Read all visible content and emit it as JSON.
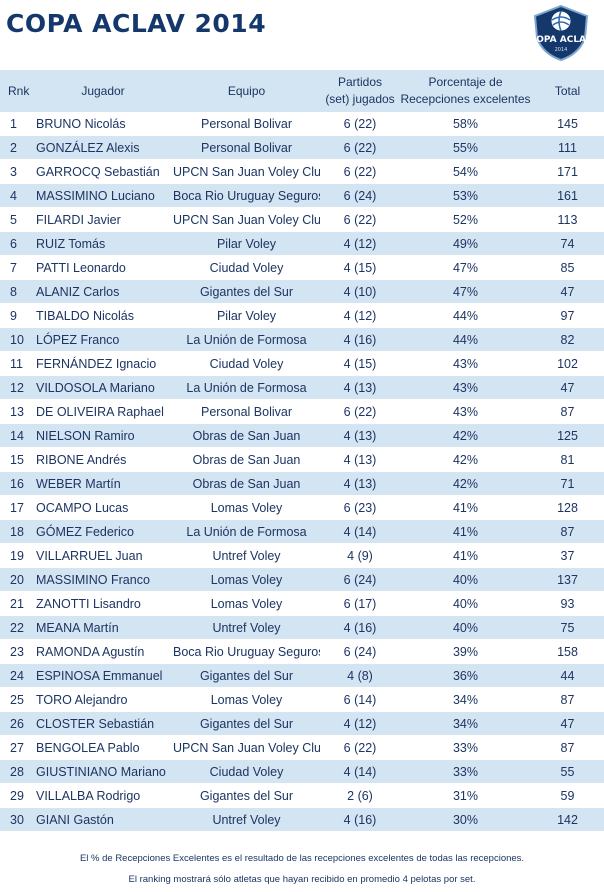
{
  "title": "COPA ACLAV 2014",
  "logo": {
    "text": "COPA ACLAV",
    "year": "2014",
    "icon": "volleyball-shield-icon"
  },
  "headers": {
    "rank": "Rnk",
    "player": "Jugador",
    "team": "Equipo",
    "sets_line1": "Partidos",
    "sets_line2": "(set) jugados",
    "pct_line1": "Porcentaje de",
    "pct_line2": "Recepciones excelentes",
    "total": "Total"
  },
  "rows": [
    {
      "rank": "1",
      "player": "BRUNO Nicolás",
      "team": "Personal Bolivar",
      "sets": "6 (22)",
      "pct": "58%",
      "total": "145"
    },
    {
      "rank": "2",
      "player": "GONZÁLEZ Alexis",
      "team": "Personal Bolivar",
      "sets": "6 (22)",
      "pct": "55%",
      "total": "111"
    },
    {
      "rank": "3",
      "player": "GARROCQ Sebastián",
      "team": "UPCN San Juan Voley Club",
      "sets": "6 (22)",
      "pct": "54%",
      "total": "171"
    },
    {
      "rank": "4",
      "player": "MASSIMINO Luciano",
      "team": "Boca Rio Uruguay Seguros",
      "sets": "6 (24)",
      "pct": "53%",
      "total": "161"
    },
    {
      "rank": "5",
      "player": "FILARDI Javier",
      "team": "UPCN San Juan Voley Club",
      "sets": "6 (22)",
      "pct": "52%",
      "total": "113"
    },
    {
      "rank": "6",
      "player": "RUIZ Tomás",
      "team": "Pilar Voley",
      "sets": "4 (12)",
      "pct": "49%",
      "total": "74"
    },
    {
      "rank": "7",
      "player": "PATTI Leonardo",
      "team": "Ciudad Voley",
      "sets": "4 (15)",
      "pct": "47%",
      "total": "85"
    },
    {
      "rank": "8",
      "player": "ALANIZ Carlos",
      "team": "Gigantes del Sur",
      "sets": "4 (10)",
      "pct": "47%",
      "total": "47"
    },
    {
      "rank": "9",
      "player": "TIBALDO Nicolás",
      "team": "Pilar Voley",
      "sets": "4 (12)",
      "pct": "44%",
      "total": "97"
    },
    {
      "rank": "10",
      "player": "LÓPEZ Franco",
      "team": "La Unión de Formosa",
      "sets": "4 (16)",
      "pct": "44%",
      "total": "82"
    },
    {
      "rank": "11",
      "player": "FERNÁNDEZ Ignacio",
      "team": "Ciudad Voley",
      "sets": "4 (15)",
      "pct": "43%",
      "total": "102"
    },
    {
      "rank": "12",
      "player": "VILDOSOLA Mariano",
      "team": "La Unión de Formosa",
      "sets": "4 (13)",
      "pct": "43%",
      "total": "47"
    },
    {
      "rank": "13",
      "player": "DE OLIVEIRA Raphael",
      "team": "Personal Bolivar",
      "sets": "6 (22)",
      "pct": "43%",
      "total": "87"
    },
    {
      "rank": "14",
      "player": "NIELSON Ramiro",
      "team": "Obras de San Juan",
      "sets": "4 (13)",
      "pct": "42%",
      "total": "125"
    },
    {
      "rank": "15",
      "player": "RIBONE Andrés",
      "team": "Obras de San Juan",
      "sets": "4 (13)",
      "pct": "42%",
      "total": "81"
    },
    {
      "rank": "16",
      "player": "WEBER Martín",
      "team": "Obras de San Juan",
      "sets": "4 (13)",
      "pct": "42%",
      "total": "71"
    },
    {
      "rank": "17",
      "player": "OCAMPO Lucas",
      "team": "Lomas Voley",
      "sets": "6 (23)",
      "pct": "41%",
      "total": "128"
    },
    {
      "rank": "18",
      "player": "GÓMEZ Federico",
      "team": "La Unión de Formosa",
      "sets": "4 (14)",
      "pct": "41%",
      "total": "87"
    },
    {
      "rank": "19",
      "player": "VILLARRUEL Juan",
      "team": "Untref Voley",
      "sets": "4 (9)",
      "pct": "41%",
      "total": "37"
    },
    {
      "rank": "20",
      "player": "MASSIMINO Franco",
      "team": "Lomas Voley",
      "sets": "6 (24)",
      "pct": "40%",
      "total": "137"
    },
    {
      "rank": "21",
      "player": "ZANOTTI Lisandro",
      "team": "Lomas Voley",
      "sets": "6 (17)",
      "pct": "40%",
      "total": "93"
    },
    {
      "rank": "22",
      "player": "MEANA Martín",
      "team": "Untref Voley",
      "sets": "4 (16)",
      "pct": "40%",
      "total": "75"
    },
    {
      "rank": "23",
      "player": "RAMONDA Agustín",
      "team": "Boca Rio Uruguay Seguros",
      "sets": "6 (24)",
      "pct": "39%",
      "total": "158"
    },
    {
      "rank": "24",
      "player": "ESPINOSA Emmanuel",
      "team": "Gigantes del Sur",
      "sets": "4 (8)",
      "pct": "36%",
      "total": "44"
    },
    {
      "rank": "25",
      "player": "TORO Alejandro",
      "team": "Lomas Voley",
      "sets": "6 (14)",
      "pct": "34%",
      "total": "87"
    },
    {
      "rank": "26",
      "player": "CLOSTER Sebastián",
      "team": "Gigantes del Sur",
      "sets": "4 (12)",
      "pct": "34%",
      "total": "47"
    },
    {
      "rank": "27",
      "player": "BENGOLEA Pablo",
      "team": "UPCN San Juan Voley Club",
      "sets": "6 (22)",
      "pct": "33%",
      "total": "87"
    },
    {
      "rank": "28",
      "player": "GIUSTINIANO Mariano",
      "team": "Ciudad Voley",
      "sets": "4 (14)",
      "pct": "33%",
      "total": "55"
    },
    {
      "rank": "29",
      "player": "VILLALBA Rodrigo",
      "team": "Gigantes del Sur",
      "sets": "2 (6)",
      "pct": "31%",
      "total": "59"
    },
    {
      "rank": "30",
      "player": "GIANI Gastón",
      "team": "Untref Voley",
      "sets": "4 (16)",
      "pct": "30%",
      "total": "142"
    }
  ],
  "footnotes": [
    "El % de Recepciones Excelentes es el resultado de las recepciones excelentes de todas las recepciones.",
    "El ranking mostrará sólo atletas que hayan recibido en promedio 4 pelotas por set."
  ],
  "colors": {
    "title": "#14386b",
    "text": "#1c3562",
    "stripe": "#d3e4f2"
  }
}
